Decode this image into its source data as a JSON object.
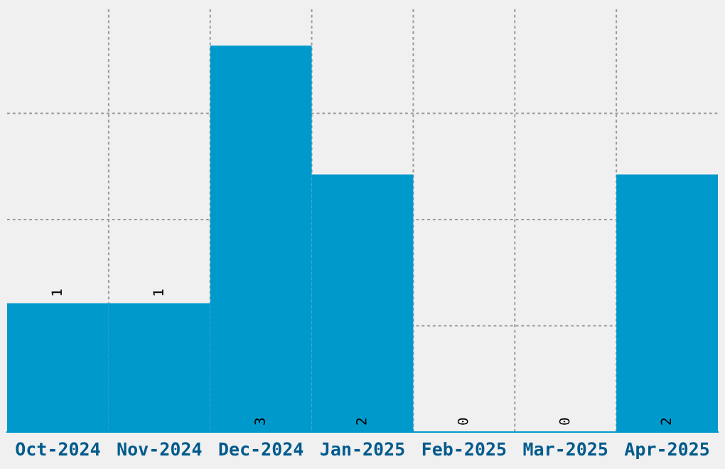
{
  "chart_data": {
    "type": "bar",
    "categories": [
      "Oct-2024",
      "Nov-2024",
      "Dec-2024",
      "Jan-2025",
      "Feb-2025",
      "Mar-2025",
      "Apr-2025"
    ],
    "values": [
      1,
      1,
      3,
      2,
      0,
      0,
      2
    ],
    "color": "#0099cc",
    "ylim": [
      0,
      3.3
    ],
    "yticks": [
      {
        "value": 0.825,
        "label": null
      },
      {
        "value": 1.65,
        "label": null
      },
      {
        "value": 2.475,
        "label": null
      }
    ],
    "tick_labels": "x",
    "grid": true,
    "data_labels": true
  }
}
